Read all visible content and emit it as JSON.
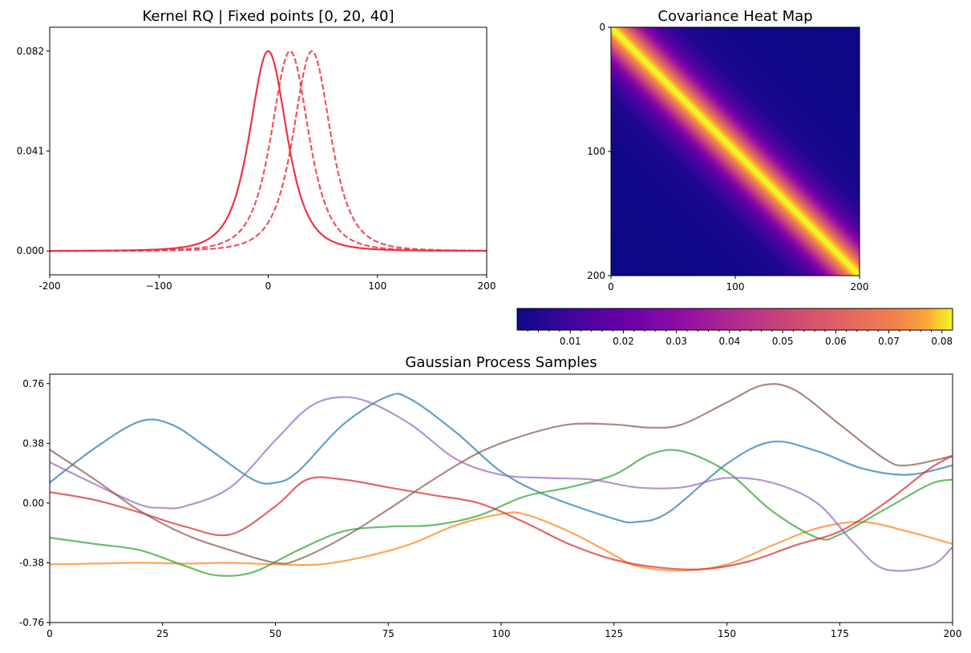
{
  "chart_data": [
    {
      "type": "line",
      "title": "Kernel RQ | Fixed points [0, 20, 40]",
      "xlim": [
        -200,
        200
      ],
      "ylim": [
        -0.0098,
        0.0918
      ],
      "xticks": [
        "-200",
        "−100",
        "0",
        "100",
        "200"
      ],
      "xtick_values": [
        -200,
        -100,
        0,
        100,
        200
      ],
      "yticks": [
        "0.000",
        "0.041",
        "0.082"
      ],
      "ytick_values": [
        0.0,
        0.041,
        0.082
      ],
      "color": "#ee3344",
      "series": [
        {
          "center": 0,
          "style": "solid",
          "peak": 0.082,
          "length_scale": 22
        },
        {
          "center": 20,
          "style": "dashed",
          "peak": 0.082,
          "length_scale": 22
        },
        {
          "center": 40,
          "style": "dashed",
          "peak": 0.082,
          "length_scale": 22
        }
      ]
    },
    {
      "type": "heatmap",
      "title": "Covariance Heat Map",
      "xlim": [
        0,
        200
      ],
      "ylim": [
        0,
        200
      ],
      "xticks": [
        "0",
        "100",
        "200"
      ],
      "yticks": [
        "0",
        "100",
        "200"
      ],
      "colormap": "plasma",
      "value_max": 0.082,
      "colorbar_ticks": [
        "0.01",
        "0.02",
        "0.03",
        "0.04",
        "0.05",
        "0.06",
        "0.07",
        "0.08"
      ],
      "colorbar_tick_values": [
        0.01,
        0.02,
        0.03,
        0.04,
        0.05,
        0.06,
        0.07,
        0.08
      ]
    },
    {
      "type": "line",
      "title": "Gaussian Process Samples",
      "xlim": [
        0,
        200
      ],
      "ylim": [
        -0.76,
        0.82
      ],
      "xticks": [
        "0",
        "25",
        "50",
        "75",
        "100",
        "125",
        "150",
        "175",
        "200"
      ],
      "xtick_values": [
        0,
        25,
        50,
        75,
        100,
        125,
        150,
        175,
        200
      ],
      "yticks": [
        "-0.76",
        "-0.38",
        "0.00",
        "0.38",
        "0.76"
      ],
      "ytick_values": [
        -0.76,
        -0.38,
        0.0,
        0.38,
        0.76
      ],
      "series": [
        {
          "color": "#1f77b4",
          "x": [
            0,
            10,
            20,
            27,
            35,
            45,
            50,
            55,
            65,
            75,
            80,
            90,
            100,
            110,
            125,
            130,
            137,
            150,
            160,
            170,
            180,
            190,
            200
          ],
          "y": [
            0.13,
            0.35,
            0.52,
            0.5,
            0.35,
            0.15,
            0.13,
            0.2,
            0.5,
            0.68,
            0.66,
            0.45,
            0.2,
            0.05,
            -0.1,
            -0.12,
            -0.06,
            0.25,
            0.39,
            0.33,
            0.22,
            0.18,
            0.24
          ]
        },
        {
          "color": "#ff7f0e",
          "x": [
            0,
            10,
            20,
            30,
            40,
            50,
            60,
            70,
            80,
            90,
            100,
            105,
            115,
            125,
            130,
            140,
            150,
            160,
            170,
            180,
            190,
            200
          ],
          "y": [
            -0.39,
            -0.385,
            -0.38,
            -0.385,
            -0.38,
            -0.39,
            -0.39,
            -0.34,
            -0.26,
            -0.14,
            -0.07,
            -0.07,
            -0.18,
            -0.33,
            -0.4,
            -0.43,
            -0.39,
            -0.27,
            -0.16,
            -0.12,
            -0.18,
            -0.26
          ]
        },
        {
          "color": "#2ca02c",
          "x": [
            0,
            10,
            20,
            30,
            37,
            45,
            55,
            65,
            75,
            85,
            95,
            105,
            115,
            125,
            133,
            140,
            150,
            160,
            170,
            175,
            185,
            195,
            200
          ],
          "y": [
            -0.22,
            -0.26,
            -0.3,
            -0.4,
            -0.46,
            -0.44,
            -0.3,
            -0.18,
            -0.15,
            -0.14,
            -0.08,
            0.04,
            0.1,
            0.18,
            0.31,
            0.33,
            0.2,
            -0.05,
            -0.22,
            -0.2,
            -0.04,
            0.12,
            0.15
          ]
        },
        {
          "color": "#d62728",
          "x": [
            0,
            10,
            20,
            30,
            40,
            50,
            57,
            65,
            75,
            85,
            95,
            105,
            115,
            125,
            135,
            145,
            155,
            165,
            175,
            185,
            195,
            200
          ],
          "y": [
            0.07,
            0.02,
            -0.06,
            -0.15,
            -0.2,
            -0.02,
            0.15,
            0.15,
            0.1,
            0.05,
            0.0,
            -0.12,
            -0.26,
            -0.36,
            -0.41,
            -0.42,
            -0.37,
            -0.27,
            -0.18,
            0.0,
            0.22,
            0.3
          ]
        },
        {
          "color": "#9467bd",
          "x": [
            0,
            10,
            20,
            25,
            30,
            40,
            50,
            57,
            63,
            70,
            80,
            90,
            100,
            110,
            120,
            130,
            140,
            150,
            160,
            170,
            178,
            185,
            195,
            200
          ],
          "y": [
            0.26,
            0.12,
            -0.01,
            -0.03,
            -0.02,
            0.1,
            0.4,
            0.6,
            0.67,
            0.65,
            0.5,
            0.28,
            0.18,
            0.16,
            0.15,
            0.1,
            0.1,
            0.16,
            0.13,
            0.0,
            -0.25,
            -0.42,
            -0.4,
            -0.28
          ]
        },
        {
          "color": "#8c564b",
          "x": [
            0,
            10,
            20,
            30,
            40,
            50,
            55,
            65,
            75,
            85,
            95,
            105,
            115,
            125,
            133,
            140,
            150,
            158,
            165,
            175,
            185,
            190,
            200
          ],
          "y": [
            0.34,
            0.15,
            -0.05,
            -0.2,
            -0.3,
            -0.38,
            -0.36,
            -0.22,
            -0.04,
            0.15,
            0.32,
            0.43,
            0.5,
            0.5,
            0.48,
            0.5,
            0.64,
            0.75,
            0.72,
            0.5,
            0.28,
            0.24,
            0.3
          ]
        }
      ]
    }
  ]
}
